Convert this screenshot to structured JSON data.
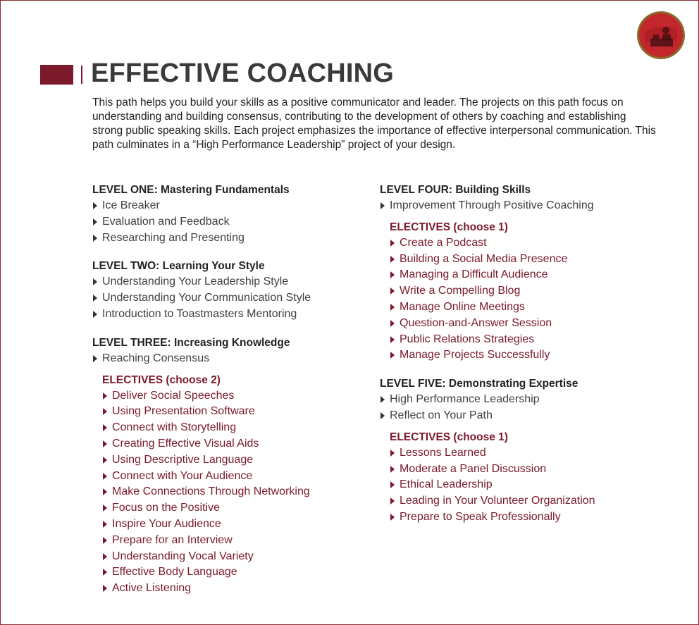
{
  "title": "EFFECTIVE COACHING",
  "intro": "This path helps you build your skills as a positive communicator and leader. The projects on this path focus on understanding and building consensus, contributing to the development of others by coaching and establishing strong public speaking skills. Each project emphasizes the importance of effective interpersonal communication. This path culminates in a “High Performance Leadership” project of your design.",
  "colors": {
    "accent": "#7a1a2a",
    "text": "#333333",
    "border": "#8c2a35"
  },
  "logo_icon": "toastmasters-podium-emblem-icon",
  "levels": [
    {
      "heading": "LEVEL ONE: Mastering Fundamentals",
      "items": [
        "Ice Breaker",
        "Evaluation and Feedback",
        "Researching and Presenting"
      ]
    },
    {
      "heading": "LEVEL TWO: Learning Your Style",
      "items": [
        "Understanding Your Leadership Style",
        "Understanding Your Communication Style",
        "Introduction to Toastmasters Mentoring"
      ]
    },
    {
      "heading": "LEVEL THREE: Increasing Knowledge",
      "items": [
        "Reaching Consensus"
      ],
      "electives_heading": "ELECTIVES (choose 2)",
      "electives": [
        "Deliver Social Speeches",
        "Using Presentation Software",
        "Connect with Storytelling",
        "Creating Effective Visual Aids",
        "Using Descriptive Language",
        "Connect with Your Audience",
        "Make Connections Through Networking",
        "Focus on the Positive",
        "Inspire Your Audience",
        "Prepare for an Interview",
        "Understanding Vocal Variety",
        "Effective Body Language",
        "Active Listening"
      ]
    },
    {
      "heading": "LEVEL FOUR: Building Skills",
      "items": [
        "Improvement Through Positive Coaching"
      ],
      "electives_heading": "ELECTIVES (choose 1)",
      "electives": [
        "Create a Podcast",
        "Building a Social Media Presence",
        "Managing a Difficult Audience",
        "Write a Compelling Blog",
        "Manage Online Meetings",
        "Question-and-Answer Session",
        "Public Relations Strategies",
        "Manage Projects Successfully"
      ]
    },
    {
      "heading": "LEVEL FIVE: Demonstrating Expertise",
      "items": [
        "High Performance Leadership",
        "Reflect on Your Path"
      ],
      "electives_heading": "ELECTIVES (choose 1)",
      "electives": [
        "Lessons Learned",
        "Moderate a Panel Discussion",
        "Ethical Leadership",
        "Leading in Your Volunteer Organization",
        "Prepare to Speak Professionally"
      ]
    }
  ]
}
